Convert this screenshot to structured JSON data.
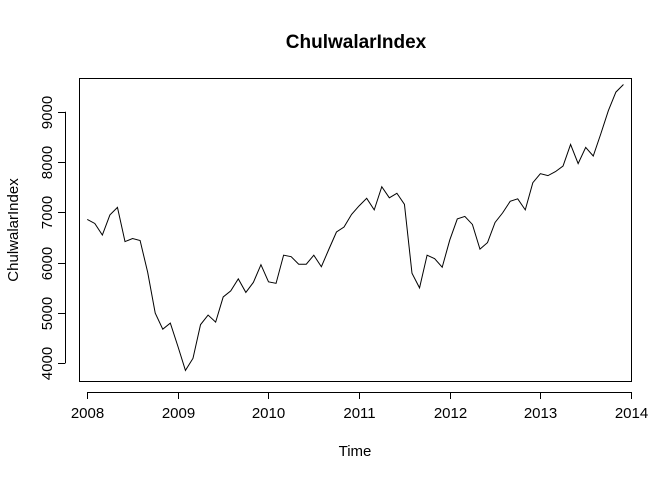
{
  "chart_data": {
    "type": "line",
    "title": "ChulwalarIndex",
    "xlabel": "Time",
    "ylabel": "ChulwalarIndex",
    "xlim": [
      2007.92,
      2014.0
    ],
    "ylim": [
      3650,
      9650
    ],
    "x_ticks": [
      2008,
      2009,
      2010,
      2011,
      2012,
      2013,
      2014
    ],
    "y_ticks": [
      4000,
      5000,
      6000,
      7000,
      8000,
      9000
    ],
    "x_tick_labels": [
      "2008",
      "2009",
      "2010",
      "2011",
      "2012",
      "2013",
      "2014"
    ],
    "y_tick_labels": [
      "4000",
      "5000",
      "6000",
      "7000",
      "8000",
      "9000"
    ],
    "grid": false,
    "series": [
      {
        "start": 2008.0,
        "frequency": 12,
        "color": "#000000",
        "values": [
          6860,
          6780,
          6550,
          6950,
          7100,
          6420,
          6480,
          6440,
          5810,
          5000,
          4680,
          4800,
          4340,
          3860,
          4100,
          4770,
          4960,
          4820,
          5320,
          5440,
          5680,
          5410,
          5610,
          5960,
          5620,
          5590,
          6150,
          6120,
          5970,
          5970,
          6150,
          5920,
          6270,
          6610,
          6710,
          6960,
          7130,
          7280,
          7050,
          7510,
          7290,
          7380,
          7160,
          5790,
          5500,
          6150,
          6080,
          5910,
          6450,
          6870,
          6920,
          6760,
          6270,
          6400,
          6800,
          6990,
          7220,
          7270,
          7050,
          7590,
          7770,
          7730,
          7810,
          7920,
          8350,
          7970,
          8290,
          8120,
          8560,
          9020,
          9390,
          9540
        ]
      }
    ]
  }
}
